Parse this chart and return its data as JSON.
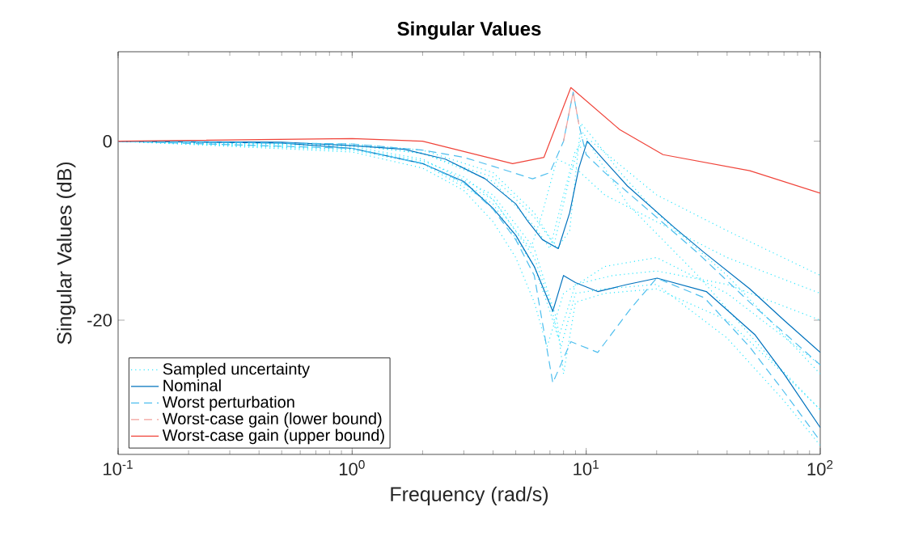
{
  "chart_data": {
    "type": "line",
    "title": "Singular Values",
    "xlabel": "Frequency (rad/s)",
    "ylabel": "Singular Values (dB)",
    "log": "x",
    "xlim": [
      0.1,
      100
    ],
    "ylim": [
      -35,
      10
    ],
    "xticks": [
      {
        "value": 0.1,
        "label": "10$^{-1}$"
      },
      {
        "value": 1,
        "label": "10$^{0}$"
      },
      {
        "value": 10,
        "label": "10$^{1}$"
      },
      {
        "value": 100,
        "label": "10$^{2}$"
      }
    ],
    "yticks": [
      -20,
      0
    ],
    "grid": false,
    "legend": "bottom left",
    "marker": "none",
    "series": [
      {
        "name": "Sampled uncertainty",
        "color": "#2ee6ff",
        "line_style": "dotted",
        "x": [
          0.1,
          1,
          2,
          3,
          4,
          5,
          5.8,
          6.5,
          7.5,
          9,
          12,
          20,
          40,
          100
        ],
        "values": [
          0,
          -0.8,
          -2.2,
          -4,
          -6.5,
          -10,
          -12,
          -8,
          -2,
          -3,
          -6,
          -9,
          -13,
          -17
        ]
      },
      {
        "color": "#2ee6ff",
        "line_style": "dotted",
        "x": [
          0.1,
          1,
          2,
          3,
          4,
          5,
          6,
          6.8,
          8,
          12,
          20,
          40,
          100
        ],
        "values": [
          0,
          -1.2,
          -3,
          -5.5,
          -9,
          -13,
          -18,
          -23,
          -17,
          -14,
          -13,
          -17,
          -25
        ]
      },
      {
        "color": "#2ee6ff",
        "line_style": "dotted",
        "x": [
          0.1,
          1,
          2,
          4,
          6,
          7.5,
          8.5,
          9.5,
          11,
          14,
          20,
          40,
          100
        ],
        "values": [
          0,
          -0.3,
          -1,
          -3.5,
          -8,
          -12,
          -10,
          2,
          0,
          -3.5,
          -8,
          -15,
          -26
        ]
      },
      {
        "color": "#2ee6ff",
        "line_style": "dotted",
        "x": [
          0.1,
          1,
          2,
          4,
          6,
          7.5,
          8,
          9,
          12,
          20,
          40,
          70,
          100
        ],
        "values": [
          0,
          -0.6,
          -2,
          -6,
          -12,
          -20,
          -26,
          -18,
          -17,
          -16.5,
          -20,
          -26,
          -30
        ]
      },
      {
        "color": "#2ee6ff",
        "line_style": "dotted",
        "x": [
          0.1,
          1,
          2,
          4,
          6,
          7,
          8,
          9,
          10.5,
          13,
          20,
          40,
          100
        ],
        "values": [
          0,
          -0.5,
          -1.3,
          -4.5,
          -9.5,
          -12,
          -6,
          -1,
          0,
          -2,
          -6,
          -10,
          -15
        ]
      },
      {
        "color": "#2ee6ff",
        "line_style": "dotted",
        "x": [
          0.1,
          1,
          2,
          4,
          6,
          7,
          7.6,
          9,
          13,
          20,
          40,
          100
        ],
        "values": [
          0,
          -1,
          -2.5,
          -7,
          -14,
          -19,
          -22,
          -16,
          -15,
          -14.5,
          -16,
          -20
        ]
      },
      {
        "color": "#2ee6ff",
        "line_style": "dotted",
        "x": [
          0.1,
          1,
          2,
          4,
          6,
          7.3,
          8.5,
          9.7,
          11,
          15,
          30,
          60,
          100
        ],
        "values": [
          0,
          -0.4,
          -1.4,
          -4,
          -8.5,
          -11.5,
          -4,
          1,
          -1.5,
          -7,
          -15,
          -24,
          -30
        ]
      },
      {
        "color": "#2ee6ff",
        "line_style": "dotted",
        "x": [
          0.1,
          1,
          2,
          4,
          6,
          7,
          7.8,
          9,
          12,
          20,
          40,
          70,
          100
        ],
        "values": [
          0,
          -0.9,
          -2.4,
          -6.5,
          -13,
          -18,
          -23,
          -17,
          -16.5,
          -16,
          -22,
          -29,
          -34
        ]
      },
      {
        "name": "Nominal",
        "color": "#0072bd",
        "line_style": "solid",
        "x": [
          0.1,
          0.5,
          1,
          1.67,
          2.5,
          3.7,
          5,
          5.65,
          6.5,
          7.6,
          8.5,
          9.3,
          10.1,
          11.9,
          15,
          23.7,
          31.8,
          50,
          70,
          100
        ],
        "values": [
          0,
          -0.1,
          -0.5,
          -0.9,
          -2,
          -4.2,
          -7,
          -9,
          -11,
          -12,
          -8,
          -3,
          0,
          -2.1,
          -5,
          -9.6,
          -12.4,
          -16.5,
          -20,
          -23.6
        ]
      },
      {
        "color": "#0072bd",
        "line_style": "solid",
        "x": [
          0.1,
          0.5,
          1,
          2,
          3,
          4,
          5,
          6,
          7.2,
          8,
          9,
          11.2,
          15,
          20.1,
          32.6,
          52.5,
          70,
          100
        ],
        "values": [
          0,
          -0.2,
          -0.8,
          -2.5,
          -4.5,
          -7.5,
          -10.5,
          -14,
          -19,
          -15,
          -15.8,
          -16.8,
          -16,
          -15.3,
          -16.8,
          -21.6,
          -26,
          -32
        ]
      },
      {
        "name": "Worst perturbation",
        "color": "#4dbeee",
        "line_style": "dashed",
        "x": [
          0.1,
          1,
          2,
          3,
          4,
          5.9,
          7,
          8,
          8.8,
          9.3,
          10,
          12,
          20,
          30,
          50,
          100
        ],
        "values": [
          0,
          -0.3,
          -1,
          -1.8,
          -2.8,
          -4.2,
          -3.5,
          0,
          5.5,
          1.9,
          -1.5,
          -3.5,
          -8.5,
          -12.5,
          -18,
          -25
        ]
      },
      {
        "color": "#4dbeee",
        "line_style": "dashed",
        "x": [
          0.1,
          1,
          2,
          3,
          4,
          5,
          6,
          7.2,
          8.6,
          11.2,
          15.5,
          20,
          32,
          50,
          70,
          100
        ],
        "values": [
          0,
          -0.8,
          -2.5,
          -4.6,
          -7.6,
          -11,
          -15,
          -27,
          -22.4,
          -23.6,
          -18.7,
          -15.3,
          -17.5,
          -23,
          -28,
          -33.5
        ]
      },
      {
        "name": "Worst-case gain (lower bound)",
        "color": "#f4a09a",
        "line_style": "dashed",
        "x": [
          8,
          8.8,
          9.3
        ],
        "values": [
          0,
          5.5,
          1.9
        ]
      },
      {
        "name": "Worst-case gain (upper bound)",
        "color": "#f0443a",
        "line_style": "solid",
        "x": [
          0.1,
          1,
          2,
          4.85,
          6.6,
          8.6,
          13.9,
          21.3,
          50,
          100
        ],
        "values": [
          0,
          0.3,
          0,
          -2.5,
          -1.8,
          6,
          1.3,
          -1.5,
          -3.3,
          -5.8
        ]
      }
    ]
  }
}
